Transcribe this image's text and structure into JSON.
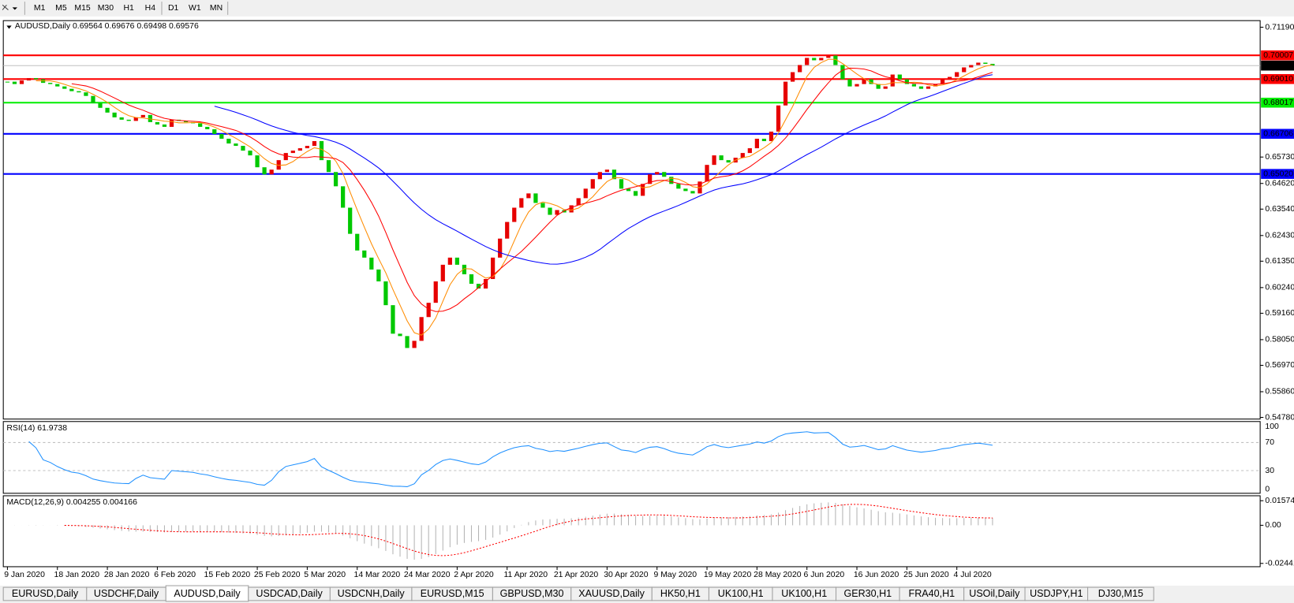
{
  "toolbar": {
    "timeframes": [
      "M1",
      "M5",
      "M15",
      "M30",
      "H1",
      "H4",
      "D1",
      "W1",
      "MN"
    ]
  },
  "chart_data": {
    "type": "candlestick",
    "title": "AUDUSD,Daily  0.69564 0.69676 0.69498 0.69576",
    "x_labels": [
      "9 Jan 2020",
      "18 Jan 2020",
      "28 Jan 2020",
      "6 Feb 2020",
      "15 Feb 2020",
      "25 Feb 2020",
      "5 Mar 2020",
      "14 Mar 2020",
      "24 Mar 2020",
      "2 Apr 2020",
      "11 Apr 2020",
      "21 Apr 2020",
      "30 Apr 2020",
      "9 May 2020",
      "19 May 2020",
      "28 May 2020",
      "6 Jun 2020",
      "16 Jun 2020",
      "25 Jun 2020",
      "4 Jul 2020"
    ],
    "close": [
      0.689,
      0.688,
      0.6895,
      0.6905,
      0.69,
      0.6885,
      0.688,
      0.687,
      0.686,
      0.685,
      0.6845,
      0.683,
      0.68,
      0.678,
      0.676,
      0.674,
      0.673,
      0.6725,
      0.674,
      0.675,
      0.672,
      0.671,
      0.67,
      0.673,
      0.6725,
      0.672,
      0.6715,
      0.67,
      0.669,
      0.667,
      0.665,
      0.663,
      0.662,
      0.66,
      0.658,
      0.653,
      0.65,
      0.652,
      0.656,
      0.659,
      0.66,
      0.661,
      0.662,
      0.664,
      0.656,
      0.651,
      0.645,
      0.636,
      0.625,
      0.618,
      0.615,
      0.61,
      0.605,
      0.595,
      0.583,
      0.582,
      0.577,
      0.58,
      0.59,
      0.596,
      0.605,
      0.612,
      0.615,
      0.612,
      0.608,
      0.604,
      0.602,
      0.606,
      0.615,
      0.623,
      0.63,
      0.636,
      0.64,
      0.642,
      0.638,
      0.636,
      0.633,
      0.635,
      0.634,
      0.637,
      0.64,
      0.644,
      0.648,
      0.651,
      0.652,
      0.648,
      0.644,
      0.643,
      0.641,
      0.646,
      0.65,
      0.651,
      0.649,
      0.646,
      0.644,
      0.643,
      0.642,
      0.647,
      0.654,
      0.658,
      0.656,
      0.655,
      0.657,
      0.659,
      0.661,
      0.665,
      0.664,
      0.668,
      0.679,
      0.689,
      0.693,
      0.696,
      0.699,
      0.698,
      0.699,
      0.7,
      0.696,
      0.69,
      0.687,
      0.688,
      0.69,
      0.688,
      0.686,
      0.687,
      0.692,
      0.69,
      0.688,
      0.687,
      0.686,
      0.687,
      0.688,
      0.69,
      0.691,
      0.693,
      0.695,
      0.696,
      0.697,
      0.6965,
      0.6958
    ],
    "ylim": [
      0.5478,
      0.7119
    ],
    "yticks": [
      {
        "value": 0.7119,
        "label": "0.71190"
      },
      {
        "value": 0.6573,
        "label": "0.65730"
      },
      {
        "value": 0.6462,
        "label": "0.64620"
      },
      {
        "value": 0.6354,
        "label": "0.63540"
      },
      {
        "value": 0.6243,
        "label": "0.62430"
      },
      {
        "value": 0.6135,
        "label": "0.61350"
      },
      {
        "value": 0.6024,
        "label": "0.60240"
      },
      {
        "value": 0.5916,
        "label": "0.59160"
      },
      {
        "value": 0.5805,
        "label": "0.58050"
      },
      {
        "value": 0.5697,
        "label": "0.56970"
      },
      {
        "value": 0.5586,
        "label": "0.55860"
      },
      {
        "value": 0.5478,
        "label": "0.54780"
      }
    ],
    "levels": [
      {
        "value": 0.70007,
        "label": "0.70007",
        "color": "#ff0000"
      },
      {
        "value": 0.6901,
        "label": "0.69010",
        "color": "#ff0000"
      },
      {
        "value": 0.68017,
        "label": "0.68017",
        "color": "#00ee00"
      },
      {
        "value": 0.66706,
        "label": "0.66706",
        "color": "#0000ff"
      },
      {
        "value": 0.6502,
        "label": "0.65020",
        "color": "#0000ff"
      }
    ],
    "current": {
      "value": 0.69576,
      "label": "0.69576"
    },
    "up_color": "#e60000",
    "down_color": "#00c800",
    "ma_colors": [
      "#ff8c00",
      "#ff0000",
      "#0000ff"
    ]
  },
  "rsi": {
    "title": "RSI(14) 61.9738",
    "ylim": [
      0,
      100
    ],
    "yticks": [
      100,
      70,
      30,
      0
    ],
    "color": "#1e90ff"
  },
  "macd": {
    "title": "MACD(12,26,9) 0.004255 0.004166",
    "ylim": [
      -0.024412,
      0.015741
    ],
    "yticks": [
      0.015741,
      {
        "value": 0,
        "label": "0.00"
      },
      -0.024412
    ],
    "hist_color": "#b4b4b4",
    "signal_color": "#ff0000"
  },
  "tabs": [
    "EURUSD,Daily",
    "USDCHF,Daily",
    "AUDUSD,Daily",
    "USDCAD,Daily",
    "USDCNH,Daily",
    "EURUSD,M15",
    "GBPUSD,M30",
    "XAUUSD,Daily",
    "HK50,H1",
    "UK100,H1",
    "UK100,H1",
    "GER30,H1",
    "FRA40,H1",
    "USOil,Daily",
    "USDJPY,H1",
    "DJ30,M15"
  ]
}
